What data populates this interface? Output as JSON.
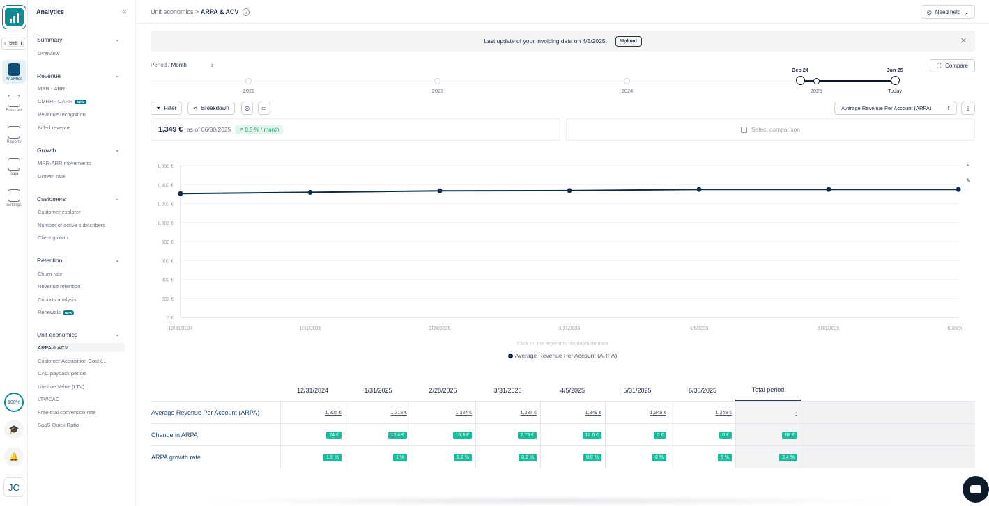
{
  "rail": {
    "cmd_label": "cmd",
    "cmd_key": "k",
    "items": [
      {
        "label": "Analytics",
        "icon": "analytics-icon",
        "active": true
      },
      {
        "label": "Forecast",
        "icon": "forecast-icon"
      },
      {
        "label": "Reports",
        "icon": "reports-icon"
      },
      {
        "label": "Data",
        "icon": "data-icon"
      },
      {
        "label": "Settings",
        "icon": "settings-icon"
      }
    ],
    "progress": "100%",
    "avatar": "JC"
  },
  "sidebar": {
    "title": "Analytics",
    "sections": [
      {
        "title": "Summary",
        "items": [
          {
            "label": "Overview"
          }
        ]
      },
      {
        "title": "Revenue",
        "items": [
          {
            "label": "MRR - ARR"
          },
          {
            "label": "CMRR - CARR",
            "badge": "NEW"
          },
          {
            "label": "Revenue recognition"
          },
          {
            "label": "Billed revenue"
          }
        ]
      },
      {
        "title": "Growth",
        "items": [
          {
            "label": "MRR-ARR movements"
          },
          {
            "label": "Growth rate"
          }
        ]
      },
      {
        "title": "Customers",
        "items": [
          {
            "label": "Customer explorer"
          },
          {
            "label": "Number of active subscribers"
          },
          {
            "label": "Client growth"
          }
        ]
      },
      {
        "title": "Retention",
        "items": [
          {
            "label": "Churn rate"
          },
          {
            "label": "Revenue retention"
          },
          {
            "label": "Cohorts analysis"
          },
          {
            "label": "Renewals",
            "badge": "NEW"
          }
        ]
      },
      {
        "title": "Unit economics",
        "items": [
          {
            "label": "ARPA & ACV",
            "active": true
          },
          {
            "label": "Customer Acquisition Cost (..."
          },
          {
            "label": "CAC payback period"
          },
          {
            "label": "Lifetime Value (LTV)"
          },
          {
            "label": "LTV/CAC"
          },
          {
            "label": "Free-trial conversion rate"
          },
          {
            "label": "SaaS Quick Ratio"
          }
        ]
      }
    ]
  },
  "header": {
    "breadcrumb_parent": "Unit economics",
    "breadcrumb_sep": ">",
    "breadcrumb_current": "ARPA & ACV",
    "help_label": "Need help"
  },
  "notice": {
    "text": "Last update of your invoicing data on 4/5/2025.",
    "button": "Upload"
  },
  "controls": {
    "period_label": "Period /",
    "period_value": "Month",
    "compare": "Compare",
    "filter": "Filter",
    "breakdown": "Breakdown",
    "metric": "Average Revenue Per Account (ARPA)"
  },
  "timeline": {
    "years": [
      "2022",
      "2023",
      "2024",
      "2025"
    ],
    "start_label": "Dec 24",
    "end_label": "Jun 25",
    "end_sub": "Today"
  },
  "kpi": {
    "value": "1,349 €",
    "as_of": "as of 06/30/2025",
    "change": "0.5 % / month",
    "select_comparison": "Select comparison"
  },
  "chart_data": {
    "type": "line",
    "x": [
      "12/31/2024",
      "1/31/2025",
      "2/28/2025",
      "3/31/2025",
      "4/5/2025",
      "5/31/2025",
      "6/30/2025"
    ],
    "series": [
      {
        "name": "Average Revenue Per Account (ARPA)",
        "values": [
          1305,
          1318,
          1334,
          1337,
          1349,
          1349,
          1349
        ]
      }
    ],
    "yticks": [
      "0 €",
      "200 €",
      "400 €",
      "600 €",
      "800 €",
      "1,000 €",
      "1,200 €",
      "1,400 €",
      "1,600 €"
    ],
    "ylim": [
      0,
      1600
    ],
    "color": "#0d2b4a",
    "grid": true,
    "hint": "Click on the legend to display/hide data"
  },
  "table": {
    "columns": [
      "12/31/2024",
      "1/31/2025",
      "2/28/2025",
      "3/31/2025",
      "4/5/2025",
      "5/31/2025",
      "6/30/2025",
      "Total period"
    ],
    "rows": [
      {
        "label": "Average Revenue Per Account (ARPA)",
        "kind": "link",
        "cells": [
          "1,305 €",
          "1,318 €",
          "1,334 €",
          "1,337 €",
          "1,349 €",
          "1,349 €",
          "1,349 €",
          "-"
        ]
      },
      {
        "label": "Change in ARPA",
        "kind": "pill",
        "cells": [
          "24 €",
          "12.4 €",
          "16.3 €",
          "2.75 €",
          "12.6 €",
          "0 €",
          "0 €",
          "68 €"
        ]
      },
      {
        "label": "ARPA growth rate",
        "kind": "pill",
        "cells": [
          "1.9 %",
          "1 %",
          "1.2 %",
          "0.2 %",
          "0.9 %",
          "0 %",
          "0 %",
          "3.4 %"
        ]
      }
    ]
  }
}
